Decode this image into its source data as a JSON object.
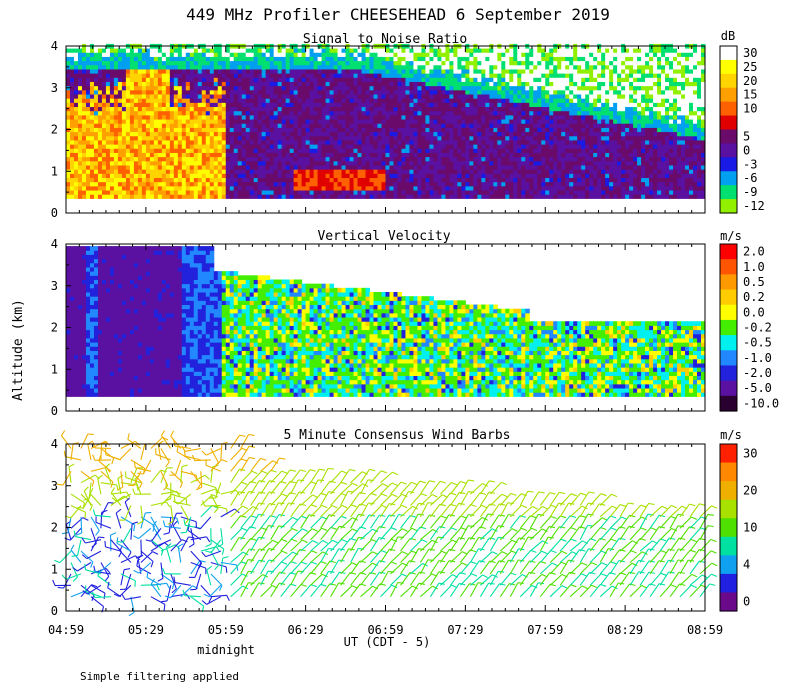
{
  "figure": {
    "title": "449 MHz Profiler CHEESEHEAD  6 September 2019",
    "y_axis_label": "Altitude (km)",
    "x_axis_label": "UT  (CDT - 5)",
    "x_ticks": [
      "04:59",
      "05:29",
      "05:59",
      "06:29",
      "06:59",
      "07:29",
      "07:59",
      "08:29",
      "08:59"
    ],
    "midnight_label": "midnight",
    "footnote": "Simple filtering applied"
  },
  "chart_data": [
    {
      "type": "heatmap",
      "title": "Signal to Noise Ratio",
      "unit": "dB",
      "ylim": [
        0,
        4
      ],
      "y_ticks": [
        "0",
        "1",
        "2",
        "3",
        "4"
      ],
      "colorbar": [
        {
          "label": "30",
          "color": "#ffffff"
        },
        {
          "label": "25",
          "color": "#ffff00"
        },
        {
          "label": "20",
          "color": "#ffd400"
        },
        {
          "label": "15",
          "color": "#ffa000"
        },
        {
          "label": "10",
          "color": "#ff6000"
        },
        {
          "label": "",
          "color": "#e00000"
        },
        {
          "label": "5",
          "color": "#6a0a6a"
        },
        {
          "label": "0",
          "color": "#5a10a0"
        },
        {
          "label": "-3",
          "color": "#1a1ae6"
        },
        {
          "label": "-6",
          "color": "#00a0f0"
        },
        {
          "label": "-9",
          "color": "#00e070"
        },
        {
          "label": "-12",
          "color": "#90f000"
        }
      ]
    },
    {
      "type": "heatmap",
      "title": "Vertical Velocity",
      "unit": "m/s",
      "ylim": [
        0,
        4
      ],
      "y_ticks": [
        "0",
        "1",
        "2",
        "3",
        "4"
      ],
      "colorbar": [
        {
          "label": "2.0",
          "color": "#ff0000"
        },
        {
          "label": "1.0",
          "color": "#ff5500"
        },
        {
          "label": "0.5",
          "color": "#ff9900"
        },
        {
          "label": "0.2",
          "color": "#ffcc00"
        },
        {
          "label": "0.0",
          "color": "#ffff00"
        },
        {
          "label": "-0.2",
          "color": "#44ee00"
        },
        {
          "label": "-0.5",
          "color": "#00f0f0"
        },
        {
          "label": "-1.0",
          "color": "#2288ff"
        },
        {
          "label": "-2.0",
          "color": "#2222dd"
        },
        {
          "label": "-5.0",
          "color": "#5a10a0"
        },
        {
          "label": "-10.0",
          "color": "#2a0030"
        }
      ]
    },
    {
      "type": "scatter",
      "title": "5 Minute Consensus Wind Barbs",
      "unit": "m/s",
      "ylim": [
        0,
        4
      ],
      "y_ticks": [
        "0",
        "1",
        "2",
        "3",
        "4"
      ],
      "colorbar": [
        {
          "label": "30",
          "color": "#ff2000"
        },
        {
          "label": "",
          "color": "#ff8800"
        },
        {
          "label": "20",
          "color": "#f0b000"
        },
        {
          "label": "",
          "color": "#a8e000"
        },
        {
          "label": "10",
          "color": "#50e000"
        },
        {
          "label": "",
          "color": "#00e0a0"
        },
        {
          "label": "4",
          "color": "#10a0f0"
        },
        {
          "label": "",
          "color": "#2020e0"
        },
        {
          "label": "0",
          "color": "#6a0a8a"
        }
      ]
    }
  ]
}
